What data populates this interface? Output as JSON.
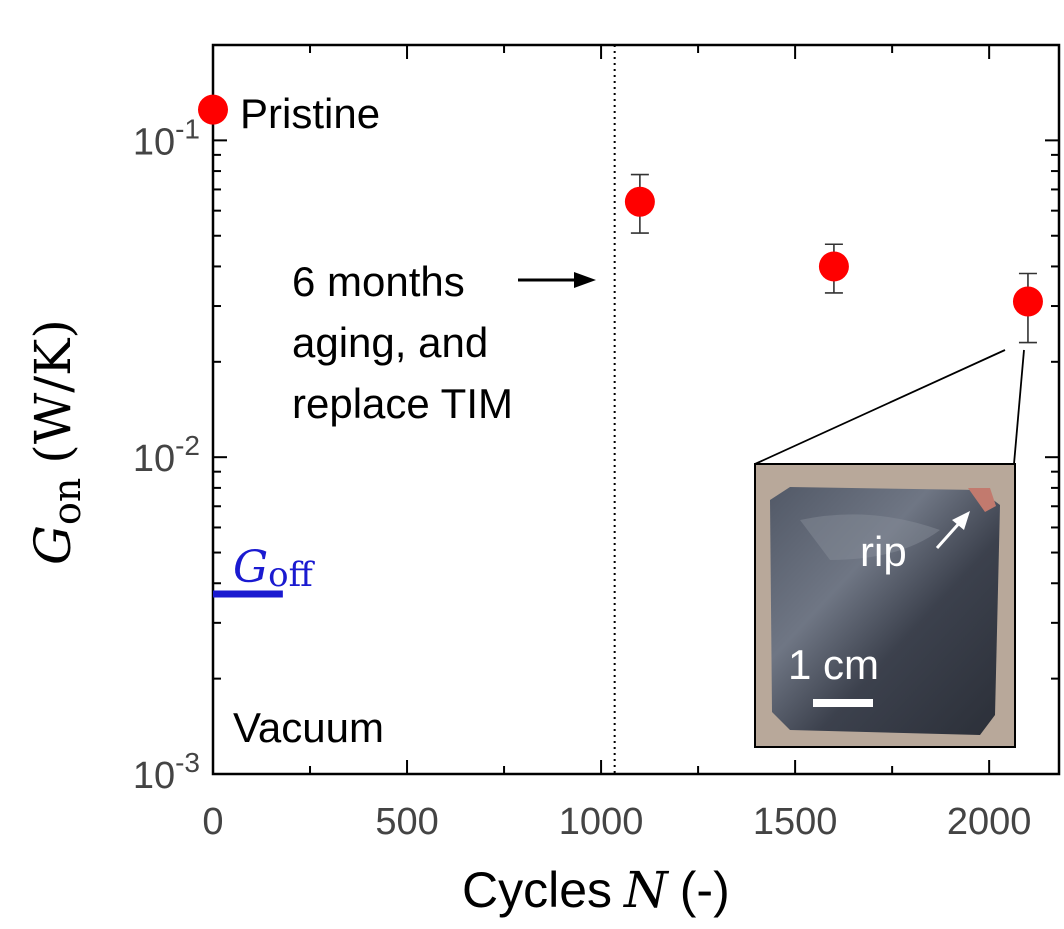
{
  "chart_data": {
    "type": "scatter",
    "xlabel": {
      "text": "Cycles",
      "var": "N",
      "unit": "(-)"
    },
    "ylabel": {
      "var": "G",
      "sub": "on",
      "unit": "(W/K)"
    },
    "x_scale": "linear",
    "y_scale": "log",
    "xlim": [
      0,
      2180
    ],
    "ylim": [
      0.001,
      0.2
    ],
    "x_ticks": [
      0,
      500,
      1000,
      1500,
      2000
    ],
    "x_tick_labels": [
      "0",
      "500",
      "1000",
      "1500",
      "2000"
    ],
    "y_ticks": [
      0.001,
      0.01,
      0.1
    ],
    "y_tick_labels": [
      {
        "base": "10",
        "exp": "-3"
      },
      {
        "base": "10",
        "exp": "-2"
      },
      {
        "base": "10",
        "exp": "-1"
      }
    ],
    "series": [
      {
        "name": "G_on",
        "color": "#ff0000",
        "points": [
          {
            "x": 0,
            "y": 0.125,
            "err_low": null,
            "err_high": null
          },
          {
            "x": 1100,
            "y": 0.064,
            "err_low": 0.051,
            "err_high": 0.078
          },
          {
            "x": 1600,
            "y": 0.04,
            "err_low": 0.033,
            "err_high": 0.047
          },
          {
            "x": 2100,
            "y": 0.031,
            "err_low": 0.023,
            "err_high": 0.038
          }
        ]
      }
    ],
    "g_off": {
      "value": 0.0037,
      "x_start": 0,
      "x_end": 180,
      "color": "#1a1ad0",
      "label_var": "G",
      "label_sub": "off"
    },
    "vline": {
      "x": 1035,
      "style": "dotted"
    },
    "annotations": {
      "pristine": "Pristine",
      "aging": [
        "6 months",
        "aging, and",
        "replace TIM"
      ],
      "vacuum": "Vacuum"
    },
    "inset": {
      "rip_label": "rip",
      "scale_label": "1 cm",
      "colors": {
        "photo_bg": "#b8a89a",
        "sample": "#3e4350",
        "tab": "#c27a6e"
      }
    }
  }
}
